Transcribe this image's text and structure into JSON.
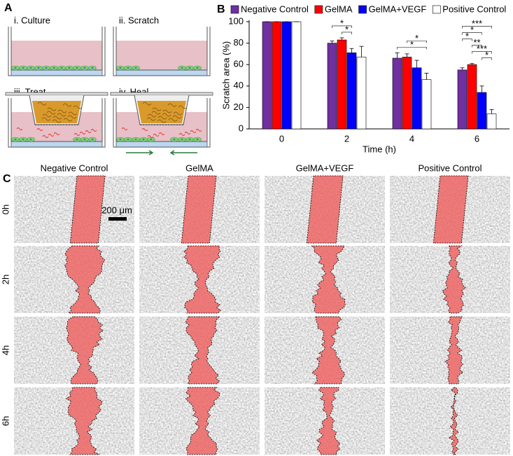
{
  "panel_labels": [
    "A",
    "B",
    "C"
  ],
  "schematic": {
    "steps": [
      "i. Culture",
      "ii. Scratch",
      "iii. Treat",
      "iv. Heal"
    ]
  },
  "chart_data": {
    "type": "bar",
    "y_label": "Scratch area (%)",
    "x_label": "Time (h)",
    "categories": [
      "0",
      "2",
      "4",
      "6"
    ],
    "series": [
      {
        "name": "Negative Control",
        "color": "#7030a0",
        "values": [
          100,
          80,
          66,
          55
        ],
        "errors": [
          0,
          2,
          5,
          2
        ]
      },
      {
        "name": "GelMA",
        "color": "#ff0000",
        "values": [
          100,
          83,
          67,
          60
        ],
        "errors": [
          0,
          2,
          3,
          1
        ]
      },
      {
        "name": "GelMA+VEGF",
        "color": "#0000ff",
        "values": [
          100,
          71,
          57,
          34
        ],
        "errors": [
          0,
          4,
          7,
          6
        ]
      },
      {
        "name": "Positive Control",
        "color": "#ffffff",
        "values": [
          100,
          67,
          46,
          14
        ],
        "errors": [
          0,
          10,
          6,
          4
        ]
      }
    ],
    "ylim": [
      0,
      100
    ],
    "yticks": [
      0,
      20,
      40,
      60,
      80,
      100
    ],
    "grid": false,
    "legend": "top",
    "annotations": [
      {
        "label": "*",
        "category": "2",
        "between": [
          "Negative Control",
          "GelMA+VEGF"
        ]
      },
      {
        "label": "*",
        "category": "2",
        "between": [
          "GelMA",
          "GelMA+VEGF"
        ]
      },
      {
        "label": "*",
        "category": "4",
        "between": [
          "GelMA",
          "Positive Control"
        ]
      },
      {
        "label": "*",
        "category": "4",
        "between": [
          "Negative Control",
          "Positive Control"
        ]
      },
      {
        "label": "***",
        "category": "6",
        "between": [
          "Negative Control",
          "Positive Control"
        ]
      },
      {
        "label": "*",
        "category": "6",
        "between": [
          "Negative Control",
          "GelMA+VEGF"
        ]
      },
      {
        "label": "*",
        "category": "6",
        "between": [
          "Negative Control",
          "GelMA"
        ]
      },
      {
        "label": "**",
        "category": "6",
        "between": [
          "GelMA",
          "GelMA+VEGF"
        ]
      },
      {
        "label": "***",
        "category": "6",
        "between": [
          "GelMA",
          "Positive Control"
        ]
      },
      {
        "label": "*",
        "category": "6",
        "between": [
          "GelMA+VEGF",
          "Positive Control"
        ]
      }
    ]
  },
  "micrographs": {
    "columns": [
      "Negative Control",
      "GelMA",
      "GelMA+VEGF",
      "Positive Control"
    ],
    "rows": [
      "0h",
      "2h",
      "4h",
      "6h"
    ],
    "scale_bar": "200 μm"
  }
}
